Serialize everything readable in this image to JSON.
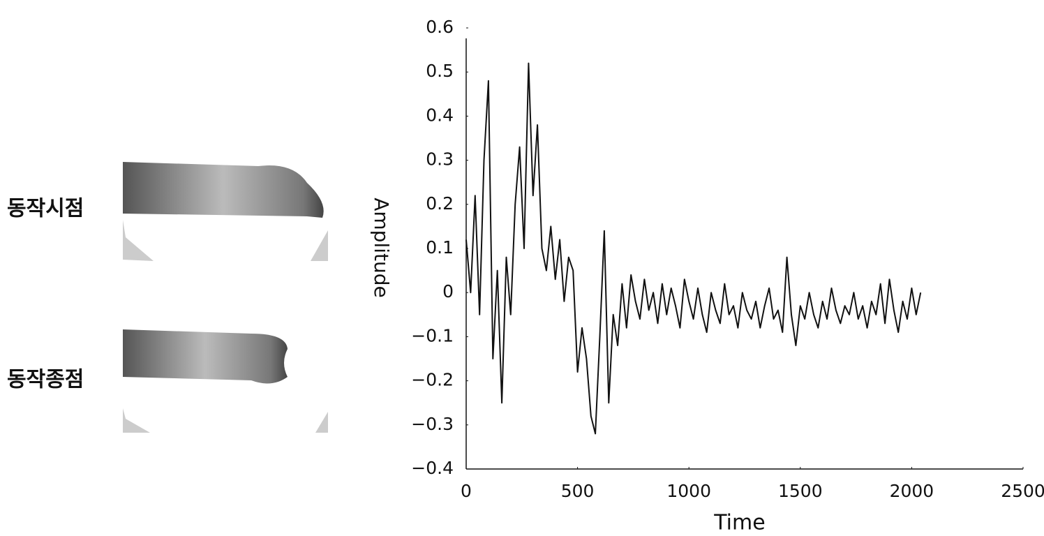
{
  "chart_data": {
    "type": "line",
    "x_label": "Time",
    "y_label": "Amplitude",
    "color": "#111111",
    "x": [
      0,
      20,
      40,
      60,
      80,
      100,
      120,
      140,
      160,
      180,
      200,
      220,
      240,
      260,
      280,
      300,
      320,
      340,
      360,
      380,
      400,
      420,
      440,
      460,
      480,
      500,
      520,
      540,
      560,
      580,
      600,
      620,
      640,
      660,
      680,
      700,
      720,
      740,
      760,
      780,
      800,
      820,
      840,
      860,
      880,
      900,
      920,
      940,
      960,
      980,
      1000,
      1020,
      1040,
      1060,
      1080,
      1100,
      1120,
      1140,
      1160,
      1180,
      1200,
      1220,
      1240,
      1260,
      1280,
      1300,
      1320,
      1340,
      1360,
      1380,
      1400,
      1420,
      1440,
      1460,
      1480,
      1500,
      1520,
      1540,
      1560,
      1580,
      1600,
      1620,
      1640,
      1660,
      1680,
      1700,
      1720,
      1740,
      1760,
      1780,
      1800,
      1820,
      1840,
      1860,
      1880,
      1900,
      1920,
      1940,
      1960,
      1980,
      2000,
      2020,
      2040
    ],
    "values": [
      0.12,
      0.0,
      0.22,
      -0.05,
      0.3,
      0.48,
      -0.15,
      0.05,
      -0.25,
      0.08,
      -0.05,
      0.2,
      0.33,
      0.1,
      0.52,
      0.22,
      0.38,
      0.1,
      0.05,
      0.15,
      0.03,
      0.12,
      -0.02,
      0.08,
      0.05,
      -0.18,
      -0.08,
      -0.15,
      -0.28,
      -0.32,
      -0.1,
      0.14,
      -0.25,
      -0.05,
      -0.12,
      0.02,
      -0.08,
      0.04,
      -0.02,
      -0.06,
      0.03,
      -0.04,
      0.0,
      -0.07,
      0.02,
      -0.05,
      0.01,
      -0.03,
      -0.08,
      0.03,
      -0.02,
      -0.06,
      0.01,
      -0.05,
      -0.09,
      0.0,
      -0.04,
      -0.07,
      0.02,
      -0.05,
      -0.03,
      -0.08,
      0.0,
      -0.04,
      -0.06,
      -0.02,
      -0.08,
      -0.03,
      0.01,
      -0.06,
      -0.04,
      -0.09,
      0.08,
      -0.05,
      -0.12,
      -0.03,
      -0.06,
      0.0,
      -0.05,
      -0.08,
      -0.02,
      -0.06,
      0.01,
      -0.04,
      -0.07,
      -0.03,
      -0.05,
      0.0,
      -0.06,
      -0.03,
      -0.08,
      -0.02,
      -0.05,
      0.02,
      -0.07,
      0.03,
      -0.04,
      -0.09,
      -0.02,
      -0.06,
      0.01,
      -0.05,
      0.0
    ],
    "xlim": [
      0,
      2500
    ],
    "xticks": [
      0,
      500,
      1000,
      1500,
      2000,
      2500
    ],
    "ylim": [
      -0.4,
      0.6
    ],
    "yticks": [
      {
        "value": -0.4,
        "label": "−0.4"
      },
      {
        "value": -0.3,
        "label": "−0.3"
      },
      {
        "value": -0.2,
        "label": "−0.2"
      },
      {
        "value": -0.1,
        "label": "−0.1"
      },
      0,
      0.1,
      0.2,
      0.3,
      0.4,
      0.5,
      0.6
    ],
    "grid": false
  },
  "panels": [
    {
      "label": "동작시점"
    },
    {
      "label": "동작종점"
    }
  ]
}
